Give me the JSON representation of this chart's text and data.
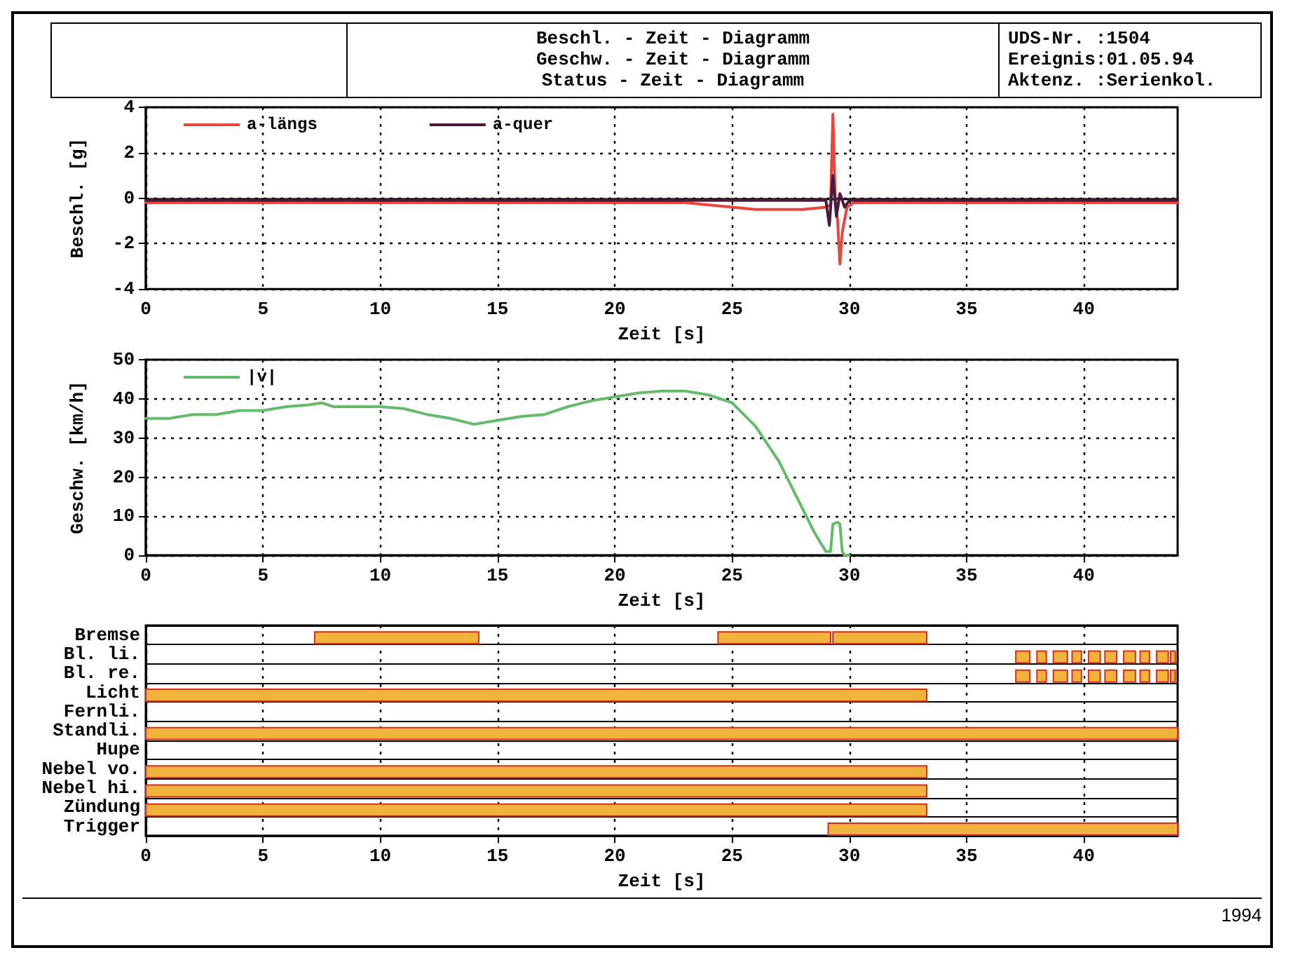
{
  "chart_data": [
    {
      "type": "line",
      "title": "Beschl. - Zeit - Diagramm\nGeschw. - Zeit - Diagramm\nStatus - Zeit - Diagramm",
      "annotations": [
        "UDS-Nr. :1504",
        "Ereignis:01.05.94",
        "Aktenz. :Serienkol."
      ],
      "xlabel": "Zeit [s]",
      "ylabel": "Beschl. [g]",
      "xlim": [
        0,
        44
      ],
      "xticks": [
        0,
        5,
        10,
        15,
        20,
        25,
        30,
        35,
        40
      ],
      "ylim": [
        -4,
        4
      ],
      "yticks": [
        -4,
        -2,
        0,
        2,
        4
      ],
      "grid": true,
      "legend": "top left",
      "series": [
        {
          "name": "a-längs",
          "color": "#e8453c",
          "x": [
            0,
            5,
            10,
            15,
            20,
            23,
            24,
            25,
            26,
            28,
            29,
            29.2,
            29.3,
            29.4,
            29.5,
            29.6,
            29.7,
            29.9,
            30.2,
            35,
            44
          ],
          "values": [
            -0.2,
            -0.2,
            -0.2,
            -0.2,
            -0.2,
            -0.2,
            -0.3,
            -0.4,
            -0.5,
            -0.5,
            -0.4,
            -0.3,
            3.7,
            0,
            -1,
            -2.9,
            -1.5,
            -0.4,
            -0.2,
            -0.2,
            -0.2
          ]
        },
        {
          "name": "a-quer",
          "color": "#4a1a3a",
          "x": [
            0,
            29,
            29.15,
            29.3,
            29.45,
            29.6,
            29.8,
            30,
            44
          ],
          "values": [
            -0.1,
            -0.1,
            -1.2,
            1,
            -0.8,
            0.2,
            -0.4,
            -0.1,
            -0.1
          ]
        }
      ]
    },
    {
      "type": "line",
      "xlabel": "Zeit [s]",
      "ylabel": "Geschw. [km/h]",
      "xlim": [
        0,
        44
      ],
      "xticks": [
        0,
        5,
        10,
        15,
        20,
        25,
        30,
        35,
        40
      ],
      "ylim": [
        0,
        50
      ],
      "yticks": [
        0,
        10,
        20,
        30,
        40,
        50
      ],
      "grid": true,
      "legend": "top left",
      "series": [
        {
          "name": "|v|",
          "color": "#66bb6a",
          "x": [
            0,
            1,
            2,
            3,
            4,
            5,
            6,
            7,
            7.5,
            8,
            10,
            11,
            12,
            13,
            14,
            15,
            16,
            17,
            18,
            19,
            20,
            21,
            22,
            23,
            24,
            25,
            26,
            27,
            28,
            28.5,
            29,
            29.2,
            29.3,
            29.5,
            29.6,
            29.7,
            29.8,
            30
          ],
          "values": [
            35,
            35,
            36,
            36,
            37,
            37,
            38,
            38.5,
            39,
            38,
            38,
            37.5,
            36,
            35,
            33.5,
            34.5,
            35.5,
            36,
            38,
            39.5,
            40.5,
            41.5,
            42,
            42,
            41,
            39,
            33,
            24,
            12,
            6,
            1,
            1,
            8,
            8.5,
            8,
            1,
            0,
            0
          ]
        }
      ]
    },
    {
      "type": "bar",
      "orientation": "horizontal",
      "xlabel": "Zeit [s]",
      "xlim": [
        0,
        44
      ],
      "xticks": [
        0,
        5,
        10,
        15,
        20,
        25,
        30,
        35,
        40
      ],
      "grid": true,
      "annotations": [
        "1994"
      ],
      "categories": [
        "Bremse",
        "Bl. li.",
        "Bl. re.",
        "Licht",
        "Fernli.",
        "Standli.",
        "Hupe",
        "Nebel vo.",
        "Nebel hi.",
        "Zündung",
        "Trigger"
      ],
      "series": [
        {
          "color": "#f2b33d",
          "base": [
            7.2,
            37.1,
            37.1,
            0,
            null,
            0,
            null,
            0,
            0,
            0,
            29.1
          ],
          "values": [
            7,
            0.6,
            0.6,
            33.3,
            null,
            44,
            null,
            33.3,
            33.3,
            33.3,
            14.9
          ]
        },
        {
          "color": "#f2b33d",
          "base": [
            24.4,
            38,
            38,
            null,
            null,
            null,
            null,
            null,
            null,
            null,
            null
          ],
          "values": [
            4.8,
            0.4,
            0.4,
            null,
            null,
            null,
            null,
            null,
            null,
            null,
            null
          ]
        },
        {
          "color": "#f2b33d",
          "base": [
            29.3,
            38.7,
            38.7,
            null,
            null,
            null,
            null,
            null,
            null,
            null,
            null
          ],
          "values": [
            4,
            0.6,
            0.6,
            null,
            null,
            null,
            null,
            null,
            null,
            null,
            null
          ]
        },
        {
          "color": "#f2b33d",
          "base": [
            null,
            39.5,
            39.5,
            null,
            null,
            null,
            null,
            null,
            null,
            null,
            null
          ],
          "values": [
            null,
            0.4,
            0.4,
            null,
            null,
            null,
            null,
            null,
            null,
            null,
            null
          ]
        },
        {
          "color": "#f2b33d",
          "base": [
            null,
            40.2,
            40.2,
            null,
            null,
            null,
            null,
            null,
            null,
            null,
            null
          ],
          "values": [
            null,
            0.5,
            0.5,
            null,
            null,
            null,
            null,
            null,
            null,
            null,
            null
          ]
        },
        {
          "color": "#f2b33d",
          "base": [
            null,
            40.9,
            40.9,
            null,
            null,
            null,
            null,
            null,
            null,
            null,
            null
          ],
          "values": [
            null,
            0.5,
            0.5,
            null,
            null,
            null,
            null,
            null,
            null,
            null,
            null
          ]
        },
        {
          "color": "#f2b33d",
          "base": [
            null,
            41.7,
            41.7,
            null,
            null,
            null,
            null,
            null,
            null,
            null,
            null
          ],
          "values": [
            null,
            0.5,
            0.5,
            null,
            null,
            null,
            null,
            null,
            null,
            null,
            null
          ]
        },
        {
          "color": "#f2b33d",
          "base": [
            null,
            42.4,
            42.4,
            null,
            null,
            null,
            null,
            null,
            null,
            null,
            null
          ],
          "values": [
            null,
            0.4,
            0.4,
            null,
            null,
            null,
            null,
            null,
            null,
            null,
            null
          ]
        },
        {
          "color": "#f2b33d",
          "base": [
            null,
            43.1,
            43.1,
            null,
            null,
            null,
            null,
            null,
            null,
            null,
            null
          ],
          "values": [
            null,
            0.5,
            0.5,
            null,
            null,
            null,
            null,
            null,
            null,
            null,
            null
          ]
        },
        {
          "color": "#f2b33d",
          "base": [
            null,
            43.7,
            43.7,
            null,
            null,
            null,
            null,
            null,
            null,
            null,
            null
          ],
          "values": [
            null,
            0.2,
            0.2,
            null,
            null,
            null,
            null,
            null,
            null,
            null,
            null
          ]
        }
      ]
    }
  ]
}
